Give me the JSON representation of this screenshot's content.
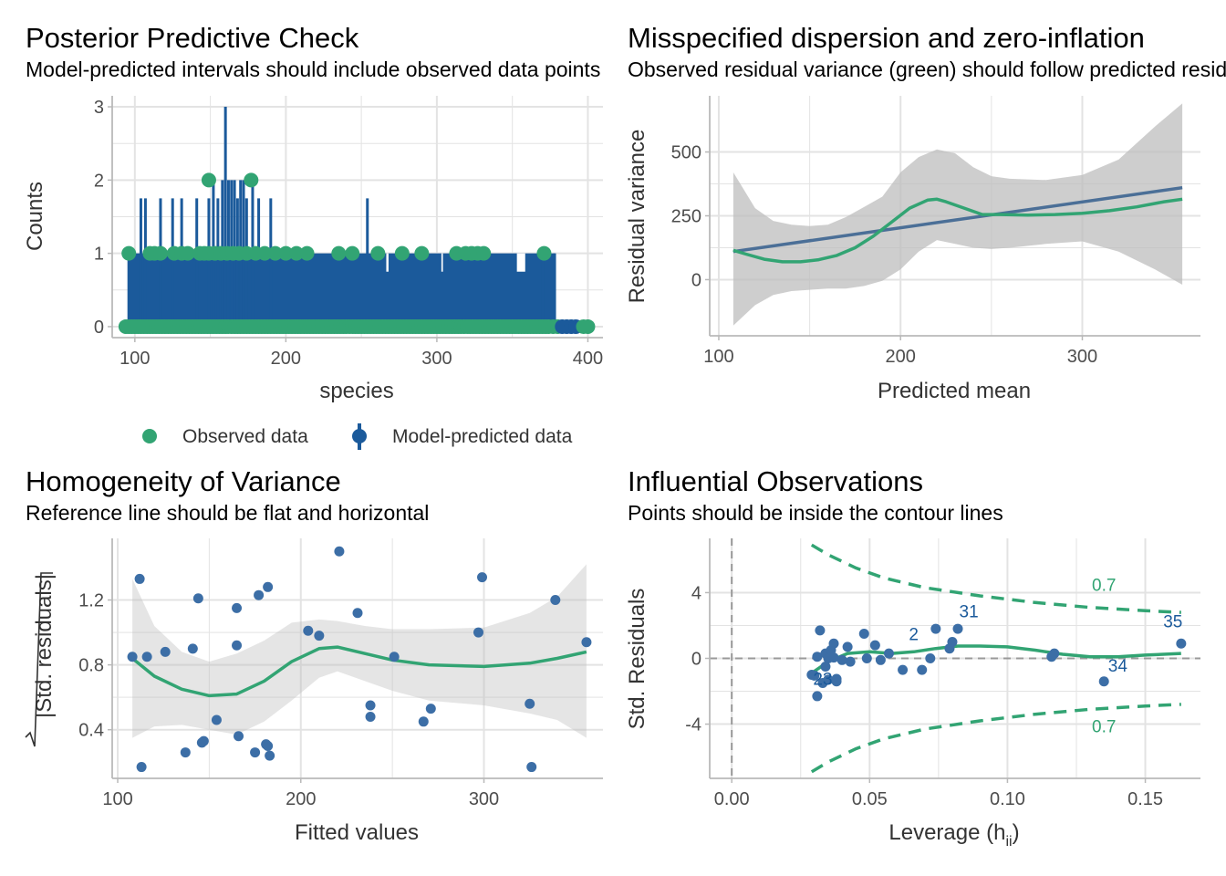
{
  "colors": {
    "green": "#32A473",
    "blue": "#1B5A9B",
    "slate": "#4B6F97",
    "point_blue": "#3C6EA6",
    "ribbon": "#BEBEBE",
    "grid": "#E3E3E3",
    "axis": "#B9B9B9"
  },
  "chart_data": [
    {
      "id": "ppc",
      "type": "bar",
      "title": "Posterior Predictive Check",
      "subtitle": "Model-predicted intervals should include observed data points",
      "xlabel": "species",
      "ylabel": "Counts",
      "xlim": [
        85,
        410
      ],
      "ylim": [
        -0.15,
        3.15
      ],
      "xticks": [
        100,
        200,
        300,
        400
      ],
      "yticks": [
        0,
        1,
        2,
        3
      ],
      "grid": true,
      "legend_position": "bottom",
      "legend": [
        {
          "label": "Observed data",
          "color": "#32A473",
          "kind": "point"
        },
        {
          "label": "Model-predicted data",
          "color": "#1B5A9B",
          "kind": "pointrange"
        }
      ],
      "predicted_band": {
        "x_start": 96,
        "x_end": 378,
        "level": 1
      },
      "predicted_gaps": [
        [
          266.5,
          268
        ],
        [
          303,
          304
        ],
        [
          353,
          358.5
        ]
      ],
      "predicted_spikes": [
        {
          "x": 96,
          "value": 1
        },
        {
          "x": 104,
          "value": 1.75
        },
        {
          "x": 107,
          "value": 1.75
        },
        {
          "x": 117,
          "value": 1.75
        },
        {
          "x": 125,
          "value": 1.75
        },
        {
          "x": 131,
          "value": 1.75
        },
        {
          "x": 141,
          "value": 1.75
        },
        {
          "x": 149,
          "value": 1.75
        },
        {
          "x": 152,
          "value": 2
        },
        {
          "x": 155,
          "value": 1.75
        },
        {
          "x": 158,
          "value": 2
        },
        {
          "x": 160,
          "value": 3
        },
        {
          "x": 162,
          "value": 2
        },
        {
          "x": 164,
          "value": 2
        },
        {
          "x": 166,
          "value": 2
        },
        {
          "x": 168,
          "value": 1.75
        },
        {
          "x": 170,
          "value": 2
        },
        {
          "x": 172,
          "value": 2
        },
        {
          "x": 174,
          "value": 1.75
        },
        {
          "x": 178,
          "value": 2
        },
        {
          "x": 182,
          "value": 1.75
        },
        {
          "x": 190,
          "value": 1.75
        },
        {
          "x": 254,
          "value": 1.75
        },
        {
          "x": 370,
          "value": 1
        },
        {
          "x": 378,
          "value": 1
        }
      ],
      "observed_points": {
        "zero_range": [
          94,
          372
        ],
        "zeros_extra": [
          374,
          377,
          380,
          383,
          386,
          389,
          392,
          397,
          400
        ],
        "ones": [
          96,
          110,
          113,
          117,
          126,
          131,
          135,
          143,
          146,
          149,
          153,
          157,
          161,
          165,
          169,
          174,
          180,
          186,
          193,
          200,
          207,
          214,
          235,
          244,
          261,
          277,
          290,
          313,
          319,
          323,
          327,
          331,
          371
        ],
        "twos": [
          149,
          177
        ]
      }
    },
    {
      "id": "dispersion",
      "type": "line",
      "title": "Misspecified dispersion and zero-inflation",
      "subtitle": "Observed residual variance (green) should follow predicted residual variance (blue)",
      "xlabel": "Predicted mean",
      "ylabel": "Residual variance",
      "xlim": [
        95,
        365
      ],
      "ylim": [
        -220,
        720
      ],
      "xticks": [
        100,
        200,
        300
      ],
      "yticks": [
        0,
        250,
        500
      ],
      "grid": true,
      "series": [
        {
          "name": "predicted",
          "color": "#4B6F97",
          "x": [
            108,
            355
          ],
          "y": [
            110,
            360
          ]
        },
        {
          "name": "observed",
          "color": "#32A473",
          "x": [
            108,
            115,
            125,
            135,
            145,
            155,
            165,
            175,
            185,
            195,
            205,
            215,
            220,
            225,
            235,
            245,
            255,
            270,
            285,
            300,
            315,
            330,
            345,
            355
          ],
          "y": [
            115,
            100,
            80,
            70,
            70,
            78,
            95,
            125,
            170,
            225,
            280,
            312,
            315,
            305,
            280,
            255,
            255,
            253,
            255,
            260,
            270,
            285,
            305,
            315
          ]
        }
      ],
      "ribbon": {
        "x": [
          108,
          120,
          130,
          140,
          150,
          160,
          170,
          180,
          190,
          200,
          210,
          220,
          230,
          240,
          250,
          260,
          280,
          300,
          320,
          340,
          355
        ],
        "lower": [
          -180,
          -100,
          -60,
          -45,
          -40,
          -35,
          -35,
          -25,
          -5,
          40,
          110,
          155,
          140,
          125,
          120,
          125,
          140,
          150,
          110,
          40,
          -20
        ],
        "upper": [
          420,
          280,
          230,
          215,
          210,
          215,
          245,
          285,
          325,
          420,
          480,
          510,
          495,
          440,
          405,
          395,
          390,
          410,
          470,
          600,
          690
        ]
      }
    },
    {
      "id": "homogeneity",
      "type": "scatter",
      "title": "Homogeneity of Variance",
      "subtitle": "Reference line should be flat and horizontal",
      "xlabel": "Fitted values",
      "ylabel": "|Std. residuals|",
      "xlim": [
        97,
        365
      ],
      "ylim": [
        0.1,
        1.58
      ],
      "xticks": [
        100,
        200,
        300
      ],
      "yticks": [
        0.4,
        0.8,
        1.2
      ],
      "ytick_labels": [
        "0.4",
        "0.8",
        "1.2"
      ],
      "grid": true,
      "points": {
        "x": [
          108,
          112,
          113,
          116,
          126,
          137,
          141,
          144,
          146,
          147,
          154,
          165,
          165,
          166,
          175,
          177,
          181,
          182,
          182,
          183,
          204,
          210,
          221,
          231,
          238,
          238,
          251,
          267,
          271,
          297,
          299,
          325,
          326,
          339,
          356
        ],
        "y": [
          0.85,
          1.33,
          0.17,
          0.85,
          0.88,
          0.26,
          0.9,
          1.21,
          0.32,
          0.33,
          0.46,
          1.15,
          0.92,
          0.36,
          0.26,
          1.23,
          0.31,
          0.3,
          1.28,
          0.24,
          1.01,
          0.98,
          1.5,
          1.12,
          0.55,
          0.48,
          0.85,
          0.45,
          0.53,
          1.0,
          1.34,
          0.56,
          0.17,
          1.2,
          0.94
        ]
      },
      "smooth": {
        "x": [
          108,
          120,
          135,
          150,
          165,
          180,
          195,
          210,
          220,
          235,
          250,
          270,
          300,
          325,
          340,
          356
        ],
        "y": [
          0.84,
          0.73,
          0.65,
          0.61,
          0.62,
          0.7,
          0.82,
          0.9,
          0.91,
          0.87,
          0.83,
          0.8,
          0.79,
          0.81,
          0.84,
          0.88
        ]
      },
      "ribbon": {
        "x": [
          108,
          120,
          135,
          150,
          165,
          180,
          195,
          210,
          220,
          235,
          250,
          270,
          300,
          325,
          340,
          356
        ],
        "lower": [
          0.35,
          0.42,
          0.43,
          0.4,
          0.37,
          0.45,
          0.58,
          0.72,
          0.76,
          0.7,
          0.64,
          0.58,
          0.55,
          0.5,
          0.46,
          0.35
        ],
        "upper": [
          1.33,
          1.04,
          0.88,
          0.82,
          0.87,
          0.95,
          1.06,
          1.08,
          1.07,
          1.04,
          1.02,
          1.02,
          1.03,
          1.12,
          1.22,
          1.42
        ]
      }
    },
    {
      "id": "influential",
      "type": "scatter",
      "title": "Influential Observations",
      "subtitle": "Points should be inside the contour lines",
      "xlabel": "Leverage (h",
      "xlabel_sub": "ii",
      "xlabel_close": ")",
      "ylabel": "Std. Residuals",
      "xlim": [
        -0.008,
        0.17
      ],
      "ylim": [
        -7.3,
        7.3
      ],
      "xticks": [
        0,
        0.05,
        0.1,
        0.15
      ],
      "xtick_labels": [
        "0.00",
        "0.05",
        "0.10",
        "0.15"
      ],
      "yticks": [
        -4,
        0,
        4
      ],
      "ytick_labels": [
        "-4",
        "0",
        "4"
      ],
      "grid": true,
      "contour_label": "0.7",
      "contour_upper": {
        "x": [
          0.029,
          0.035,
          0.045,
          0.055,
          0.07,
          0.09,
          0.11,
          0.13,
          0.15,
          0.163
        ],
        "y": [
          6.9,
          6.3,
          5.5,
          4.9,
          4.3,
          3.8,
          3.4,
          3.1,
          2.9,
          2.8
        ]
      },
      "contour_lower": {
        "x": [
          0.029,
          0.035,
          0.045,
          0.055,
          0.07,
          0.09,
          0.11,
          0.13,
          0.15,
          0.163
        ],
        "y": [
          -6.9,
          -6.3,
          -5.5,
          -4.9,
          -4.3,
          -3.8,
          -3.4,
          -3.1,
          -2.9,
          -2.8
        ]
      },
      "points": {
        "x": [
          0.029,
          0.03,
          0.031,
          0.031,
          0.032,
          0.033,
          0.034,
          0.035,
          0.035,
          0.036,
          0.037,
          0.038,
          0.038,
          0.04,
          0.042,
          0.043,
          0.048,
          0.049,
          0.052,
          0.054,
          0.057,
          0.062,
          0.069,
          0.072,
          0.074,
          0.079,
          0.08,
          0.082,
          0.116,
          0.117,
          0.135,
          0.163,
          0.034,
          0.037
        ],
        "y": [
          -1.0,
          -1.05,
          0.1,
          -2.3,
          1.7,
          -1.5,
          0.3,
          -1.3,
          0.0,
          0.5,
          0.9,
          -1.4,
          -1.25,
          -0.1,
          0.7,
          -0.2,
          1.5,
          0.0,
          0.8,
          -0.1,
          0.3,
          -0.7,
          -0.7,
          0.0,
          1.8,
          0.6,
          1.0,
          1.8,
          0.1,
          0.3,
          -1.4,
          0.9,
          -0.5,
          0.05
        ]
      },
      "labels": [
        {
          "text": "23",
          "x": 0.033,
          "y": -1.6
        },
        {
          "text": "2",
          "x": 0.066,
          "y": 1.1
        },
        {
          "text": "31",
          "x": 0.086,
          "y": 2.5
        },
        {
          "text": "34",
          "x": 0.14,
          "y": -0.8
        },
        {
          "text": "35",
          "x": 0.16,
          "y": 1.9
        }
      ],
      "smooth": {
        "x": [
          0.029,
          0.035,
          0.042,
          0.05,
          0.058,
          0.066,
          0.074,
          0.082,
          0.09,
          0.1,
          0.11,
          0.12,
          0.13,
          0.14,
          0.15,
          0.163
        ],
        "y": [
          -0.9,
          -0.2,
          0.3,
          0.4,
          0.3,
          0.4,
          0.6,
          0.75,
          0.75,
          0.7,
          0.5,
          0.25,
          0.1,
          0.1,
          0.2,
          0.3
        ]
      }
    }
  ]
}
